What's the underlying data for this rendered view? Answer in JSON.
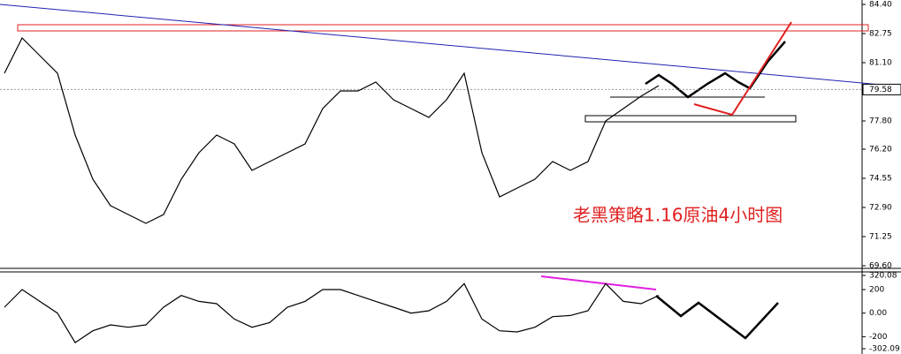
{
  "chart_data": [
    {
      "type": "line",
      "annotation": "老黑策略1.16原油4小时图",
      "last_value": 79.58,
      "ylim": [
        69.6,
        84.4
      ],
      "yticks": [
        {
          "value": 84.4,
          "label": "84.40"
        },
        82.75,
        {
          "value": 81.1,
          "label": "81.10"
        },
        {
          "value": 77.8,
          "label": "77.80"
        },
        {
          "value": 76.2,
          "label": "76.20"
        },
        74.55,
        {
          "value": 72.9,
          "label": "72.90"
        },
        71.25,
        {
          "value": 69.6,
          "label": "69.60"
        }
      ],
      "series": [
        {
          "color": "#000000",
          "values": [
            80.5,
            82.5,
            81.5,
            80.5,
            77,
            74.5,
            73,
            72.5,
            72,
            72.5,
            74.5,
            76,
            77,
            76.5,
            75,
            75.5,
            76,
            76.5,
            78.5,
            79.5,
            79.5,
            80,
            79,
            78.5,
            78,
            79,
            80.5,
            76,
            73.5,
            74,
            74.5,
            75.5,
            75,
            75.5,
            77.8,
            78.5,
            79.2,
            79.8
          ]
        }
      ]
    },
    {
      "type": "line",
      "ylim": [
        -302.09,
        320.08
      ],
      "yticks": [
        320.08,
        200,
        {
          "value": 0,
          "label": "0.00"
        },
        -200,
        -302.09
      ],
      "series": [
        {
          "color": "#000000",
          "values": [
            50,
            200,
            100,
            0,
            -250,
            -150,
            -100,
            -120,
            -100,
            50,
            150,
            100,
            80,
            -50,
            -120,
            -80,
            50,
            100,
            200,
            200,
            150,
            100,
            50,
            0,
            20,
            100,
            250,
            -50,
            -150,
            -160,
            -120,
            -30,
            -20,
            20,
            250,
            100,
            80,
            150
          ]
        }
      ]
    }
  ]
}
